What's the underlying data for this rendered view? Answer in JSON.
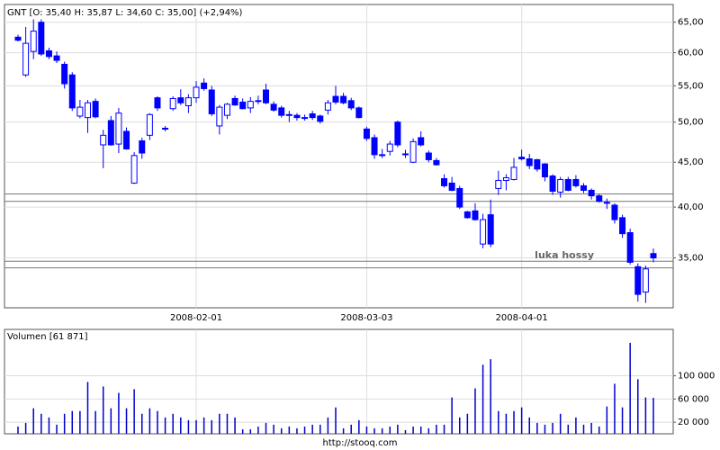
{
  "chart_data": [
    {
      "type": "candlestick",
      "title": "GNT [O: 35,40  H: 35,87  L: 34,60  C: 35,00]  (+2,94%)",
      "categories": [
        null,
        null,
        null,
        null,
        null,
        null,
        null,
        null,
        null,
        null,
        null,
        null,
        null,
        null,
        null,
        null,
        null,
        null,
        null,
        null,
        null,
        null,
        null,
        "2008-02-01",
        null,
        null,
        null,
        null,
        null,
        null,
        null,
        null,
        null,
        null,
        null,
        null,
        null,
        null,
        null,
        null,
        null,
        null,
        null,
        null,
        null,
        "2008-03-03",
        null,
        null,
        null,
        null,
        null,
        null,
        null,
        null,
        null,
        null,
        null,
        null,
        null,
        null,
        null,
        null,
        null,
        null,
        null,
        "2008-04-01",
        null,
        null,
        null,
        null,
        null,
        null,
        null,
        null,
        null,
        null,
        null,
        null,
        null,
        null,
        null,
        null,
        null
      ],
      "open": [
        62.5,
        56.6,
        60.2,
        65.0,
        60.3,
        59.5,
        58.2,
        56.6,
        50.8,
        50.6,
        52.8,
        47.1,
        50.2,
        47.2,
        48.8,
        42.6,
        47.6,
        48.3,
        53.3,
        49.2,
        51.8,
        53.3,
        52.2,
        53.3,
        55.4,
        54.4,
        49.5,
        50.9,
        53.2,
        52.7,
        51.9,
        52.9,
        54.4,
        52.4,
        51.9,
        51.0,
        50.9,
        50.6,
        51.1,
        50.8,
        51.6,
        53.5,
        53.5,
        52.9,
        51.9,
        49.1,
        48.0,
        45.9,
        46.3,
        50.0,
        46.0,
        45.0,
        48.0,
        46.1,
        45.2,
        43.1,
        42.6,
        42.0,
        39.5,
        39.6,
        36.3,
        39.2,
        42.0,
        42.9,
        43.0,
        45.6,
        45.4,
        45.3,
        44.8,
        43.4,
        41.6,
        43.0,
        43.0,
        42.3,
        41.8,
        41.2,
        40.5,
        40.2,
        38.9,
        37.4,
        34.2,
        32.0,
        35.4
      ],
      "high": [
        62.9,
        64.2,
        65.5,
        65.5,
        60.8,
        60.2,
        58.6,
        57.0,
        53.0,
        53.0,
        53.2,
        49.0,
        50.8,
        51.9,
        49.3,
        46.2,
        48.0,
        51.2,
        53.5,
        49.5,
        53.5,
        54.5,
        53.8,
        55.7,
        56.1,
        55.0,
        52.3,
        52.6,
        53.6,
        53.2,
        53.4,
        53.6,
        55.3,
        52.8,
        52.2,
        51.5,
        51.2,
        51.0,
        51.5,
        51.0,
        53.0,
        55.0,
        54.0,
        53.3,
        52.1,
        49.4,
        48.4,
        46.6,
        47.6,
        50.2,
        46.5,
        47.9,
        48.8,
        46.4,
        45.5,
        43.6,
        43.3,
        42.3,
        39.6,
        40.4,
        39.3,
        40.8,
        44.0,
        43.6,
        45.5,
        46.5,
        46.0,
        45.4,
        44.9,
        43.6,
        43.3,
        43.3,
        43.5,
        42.6,
        42.0,
        41.4,
        40.9,
        40.4,
        39.2,
        37.8,
        34.5,
        34.3,
        35.87
      ],
      "low": [
        61.8,
        56.3,
        59.0,
        59.5,
        59.0,
        58.4,
        54.6,
        51.5,
        50.5,
        48.6,
        50.5,
        44.3,
        47.0,
        46.1,
        46.5,
        42.5,
        45.4,
        47.7,
        51.5,
        48.8,
        51.5,
        52.3,
        51.2,
        52.6,
        54.3,
        50.8,
        48.4,
        50.4,
        52.2,
        51.7,
        51.2,
        52.4,
        52.4,
        51.4,
        50.6,
        50.0,
        50.2,
        50.2,
        50.3,
        49.8,
        51.0,
        52.4,
        52.4,
        51.6,
        50.5,
        47.6,
        45.4,
        45.5,
        45.8,
        46.8,
        45.5,
        44.9,
        46.9,
        45.0,
        44.6,
        42.1,
        41.7,
        39.8,
        38.8,
        38.6,
        35.9,
        36.0,
        41.3,
        41.8,
        42.9,
        45.2,
        44.2,
        43.9,
        42.8,
        41.3,
        41.0,
        41.7,
        42.1,
        41.5,
        40.8,
        40.5,
        39.8,
        38.3,
        36.9,
        34.4,
        31.2,
        31.1,
        34.6
      ],
      "close": [
        62.0,
        61.5,
        63.5,
        59.8,
        59.4,
        58.8,
        55.3,
        51.9,
        52.0,
        52.6,
        50.7,
        48.3,
        47.1,
        51.2,
        46.6,
        45.8,
        46.1,
        51.0,
        51.9,
        49.1,
        53.2,
        52.6,
        53.3,
        54.8,
        54.6,
        51.1,
        52.0,
        52.4,
        52.3,
        51.8,
        52.8,
        52.9,
        52.6,
        51.6,
        50.9,
        51.0,
        50.6,
        50.6,
        50.6,
        50.1,
        52.6,
        52.7,
        52.6,
        51.9,
        50.6,
        47.9,
        45.9,
        45.9,
        47.2,
        47.1,
        46.0,
        47.5,
        47.1,
        45.3,
        44.7,
        42.3,
        41.8,
        40.0,
        38.9,
        38.7,
        38.7,
        36.3,
        42.9,
        43.2,
        44.4,
        45.4,
        44.6,
        44.2,
        43.3,
        41.7,
        43.0,
        41.8,
        42.3,
        41.8,
        41.2,
        40.6,
        40.4,
        38.7,
        37.3,
        34.6,
        31.8,
        34.0,
        35.0
      ],
      "color": "#0000ff",
      "ylim": [
        30.7,
        68.1
      ],
      "log_scale": true,
      "yticks": [
        {
          "value": 35,
          "label": "35,00"
        },
        {
          "value": 40,
          "label": "40,00"
        },
        {
          "value": 45,
          "label": "45,00"
        },
        {
          "value": 50,
          "label": "50,00"
        },
        {
          "value": 55,
          "label": "55,00"
        },
        {
          "value": 60,
          "label": "60,00"
        },
        {
          "value": 65,
          "label": "65,00"
        }
      ],
      "grid": true,
      "hlines": [
        41.4,
        40.6,
        34.7,
        34.1
      ],
      "annotation": "luka hossy"
    },
    {
      "type": "bar",
      "title": "Volumen [61 871]",
      "values": [
        12500,
        18800,
        44000,
        34500,
        28200,
        15700,
        34500,
        39200,
        39200,
        89400,
        39200,
        81600,
        44000,
        70600,
        44000,
        76900,
        34500,
        44000,
        39200,
        28200,
        34500,
        28200,
        23500,
        23500,
        28200,
        23500,
        34500,
        34500,
        28200,
        7800,
        7800,
        12500,
        18800,
        15700,
        9400,
        12500,
        9400,
        12500,
        15700,
        15700,
        28200,
        45500,
        9400,
        15700,
        23500,
        12500,
        9400,
        9400,
        12500,
        15700,
        6300,
        12500,
        12500,
        9400,
        15700,
        15700,
        62700,
        28200,
        34500,
        78400,
        119200,
        128600,
        39200,
        34500,
        39200,
        45500,
        28200,
        18800,
        15700,
        18800,
        34500,
        15700,
        28200,
        15700,
        18800,
        12500,
        47100,
        86300,
        45500,
        156900,
        94100,
        62700,
        61871
      ],
      "color": "#0000cc",
      "ylim": [
        0,
        180000
      ],
      "yticks": [
        {
          "value": 20000,
          "label": "20 000"
        },
        {
          "value": 60000,
          "label": "60 000"
        },
        {
          "value": 100000,
          "label": "100 000"
        }
      ],
      "grid": true
    }
  ],
  "footer": "http://stooq.com"
}
